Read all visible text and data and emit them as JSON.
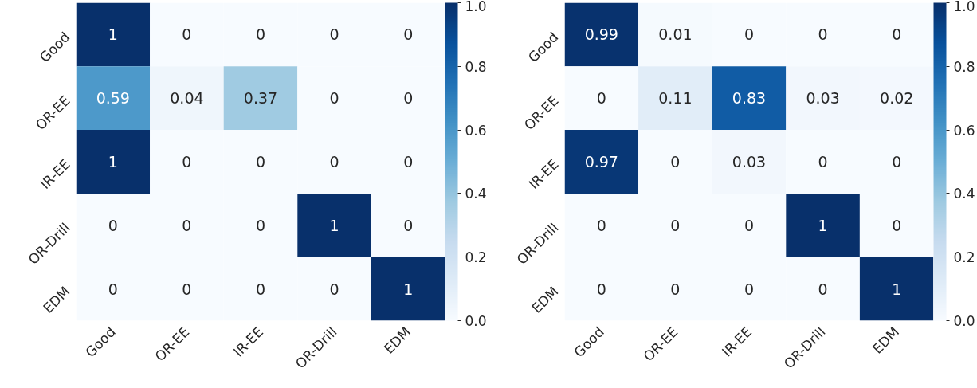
{
  "chart_data": [
    {
      "type": "heatmap",
      "categories": [
        "Good",
        "OR-EE",
        "IR-EE",
        "OR-Drill",
        "EDM"
      ],
      "y_categories": [
        "Good",
        "OR-EE",
        "IR-EE",
        "OR-Drill",
        "EDM"
      ],
      "cells": [
        [
          1,
          0,
          0,
          0,
          0
        ],
        [
          0.59,
          0.04,
          0.37,
          0,
          0
        ],
        [
          1,
          0,
          0,
          0,
          0
        ],
        [
          0,
          0,
          0,
          1,
          0
        ],
        [
          0,
          0,
          0,
          0,
          1
        ]
      ],
      "data_labels": true,
      "grid": false,
      "clim": [
        0,
        1
      ],
      "cticks": [
        {
          "value": 0,
          "label": "0.0"
        },
        {
          "value": 0.2,
          "label": "0.2"
        },
        {
          "value": 0.4,
          "label": "0.4"
        },
        {
          "value": 0.6,
          "label": "0.6"
        },
        {
          "value": 0.8,
          "label": "0.8"
        },
        {
          "value": 1,
          "label": "1.0"
        }
      ]
    },
    {
      "type": "heatmap",
      "categories": [
        "Good",
        "OR-EE",
        "IR-EE",
        "OR-Drill",
        "EDM"
      ],
      "y_categories": [
        "Good",
        "OR-EE",
        "IR-EE",
        "OR-Drill",
        "EDM"
      ],
      "cells": [
        [
          0.99,
          0.01,
          0,
          0,
          0
        ],
        [
          0,
          0.11,
          0.83,
          0.03,
          0.02
        ],
        [
          0.97,
          0,
          0.03,
          0,
          0
        ],
        [
          0,
          0,
          0,
          1,
          0
        ],
        [
          0,
          0,
          0,
          0,
          1
        ]
      ],
      "data_labels": true,
      "grid": false,
      "clim": [
        0,
        1
      ],
      "cticks": [
        {
          "value": 0,
          "label": "0.0"
        },
        {
          "value": 0.2,
          "label": "0.2"
        },
        {
          "value": 0.4,
          "label": "0.4"
        },
        {
          "value": 0.6,
          "label": "0.6"
        },
        {
          "value": 0.8,
          "label": "0.8"
        },
        {
          "value": 1,
          "label": "1.0"
        }
      ]
    }
  ]
}
